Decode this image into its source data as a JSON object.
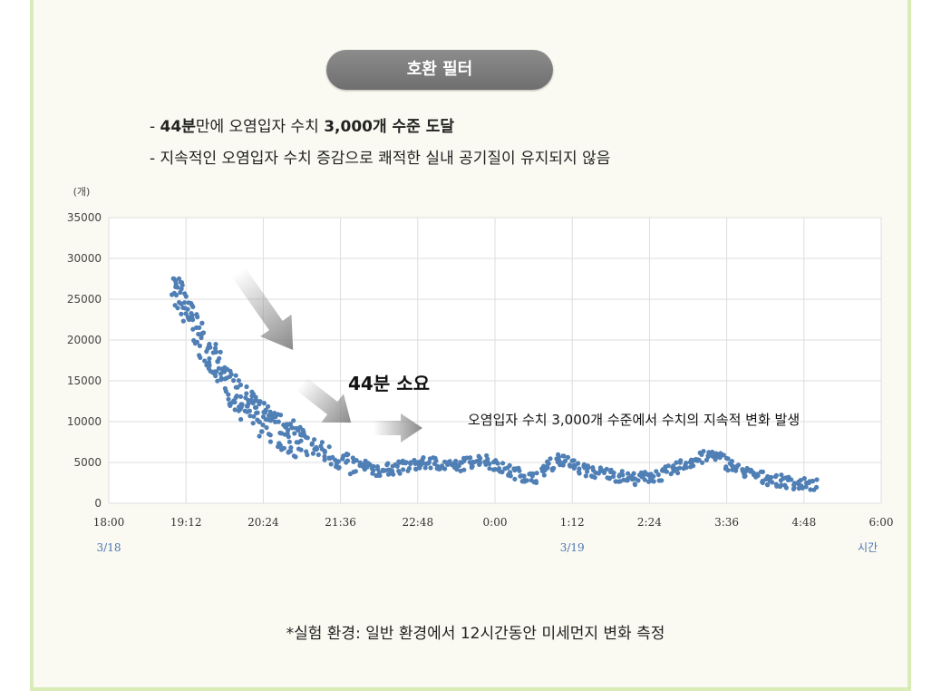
{
  "pill": {
    "label": "호환 필터"
  },
  "description": {
    "line1": {
      "prefix": "- ",
      "bold1": "44분",
      "mid": "만에 오염입자 수치 ",
      "bold2": "3,000개 수준 도달"
    },
    "line2": "- 지속적인 오염입자 수치 증감으로 쾌적한 실내 공기질이 유지되지 않음"
  },
  "chart_data": {
    "type": "scatter",
    "y_unit": "(개)",
    "x_unit": "시간",
    "ylim": [
      0,
      35000
    ],
    "y_ticks": [
      "0",
      "5000",
      "10000",
      "15000",
      "20000",
      "25000",
      "30000",
      "35000"
    ],
    "x_ticks": [
      "18:00",
      "19:12",
      "20:24",
      "21:36",
      "22:48",
      "0:00",
      "1:12",
      "2:24",
      "3:36",
      "4:48",
      "6:00"
    ],
    "date_labels": [
      {
        "text": "3/18",
        "at": "18:00"
      },
      {
        "text": "3/19",
        "at": "1:12"
      }
    ],
    "grid": true,
    "annotations": {
      "duration": "44분 소요",
      "note": "오염입자 수치 3,000개 수준에서 수치의 지속적 변화 발생"
    },
    "colors": {
      "dots": "#4f7fb5",
      "arrow": "#8a8a8a",
      "grid": "#dddddd",
      "axis_label": "#4a74b0"
    },
    "trend": {
      "x_hours_since_1800": [
        1.0,
        1.2,
        1.5,
        1.8,
        2.2,
        2.6,
        3.0,
        3.4,
        3.8,
        4.2,
        4.6,
        5.0,
        5.4,
        5.8,
        6.2,
        6.6,
        7.0,
        7.4,
        7.8,
        8.2,
        8.6,
        9.0,
        9.4,
        9.8,
        10.2,
        10.6,
        11.0
      ],
      "y": [
        26500,
        24000,
        19000,
        15000,
        11500,
        9000,
        7500,
        6000,
        4500,
        4000,
        4500,
        5000,
        4500,
        5500,
        4000,
        3000,
        5500,
        4000,
        3500,
        3000,
        3500,
        5000,
        6000,
        4000,
        3000,
        2500,
        2200
      ]
    }
  },
  "footnote": "*실험 환경: 일반 환경에서 12시간동안 미세먼지 변화 측정"
}
